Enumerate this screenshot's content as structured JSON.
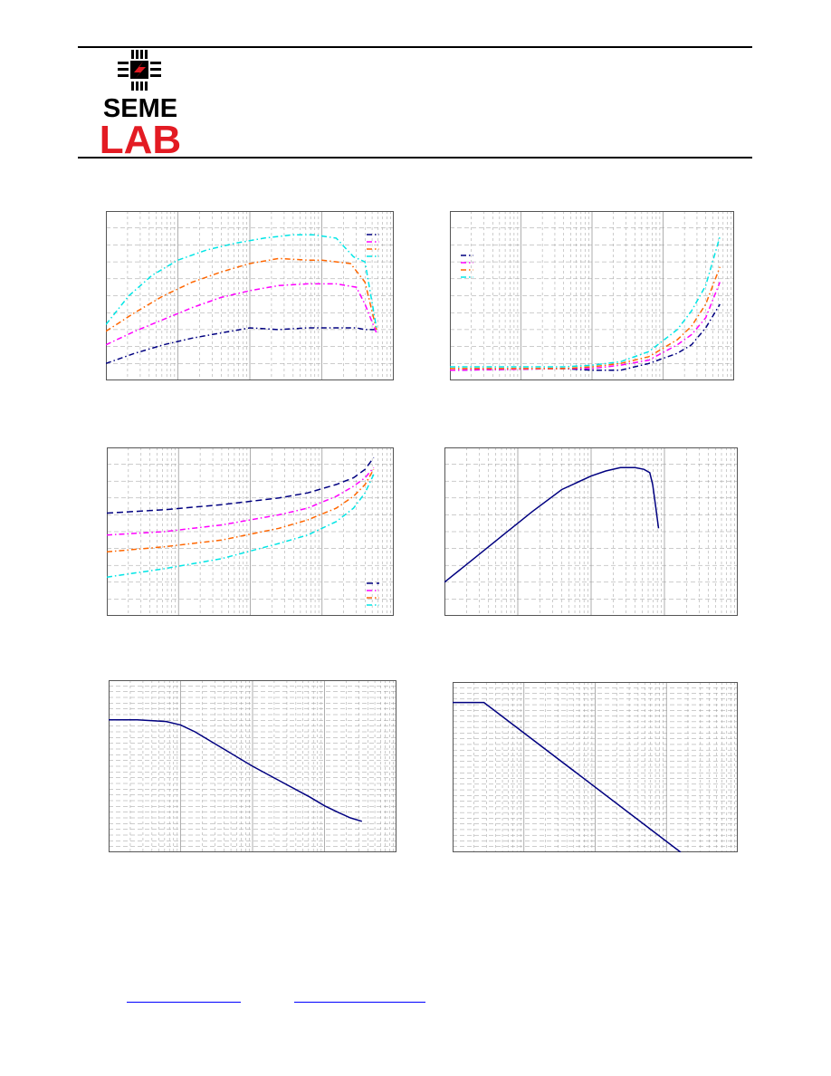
{
  "logo": {
    "line1": "SEME",
    "line2": "LAB",
    "colors": {
      "black": "#000000",
      "red": "#e31b23"
    }
  },
  "colors": {
    "navy": "#000080",
    "magenta": "#ff00ff",
    "orange": "#ff6600",
    "cyan": "#00e5e5",
    "grid": "#9a9a9a",
    "link": "#0000ff"
  },
  "chart_data": [
    {
      "type": "line",
      "xscale": "log",
      "grid": true,
      "legend": "top-right",
      "xlim": [
        0,
        1
      ],
      "ylim": [
        0,
        1
      ],
      "series": [
        {
          "color": "navy",
          "style": "dashdot",
          "x": [
            0,
            0.1,
            0.2,
            0.3,
            0.4,
            0.5,
            0.6,
            0.7,
            0.8,
            0.87,
            0.9,
            0.94
          ],
          "y": [
            0.1,
            0.16,
            0.21,
            0.25,
            0.28,
            0.31,
            0.3,
            0.31,
            0.31,
            0.31,
            0.3,
            0.3
          ]
        },
        {
          "color": "magenta",
          "style": "dashdot",
          "x": [
            0,
            0.1,
            0.2,
            0.3,
            0.4,
            0.5,
            0.6,
            0.7,
            0.8,
            0.87,
            0.9,
            0.94
          ],
          "y": [
            0.21,
            0.29,
            0.36,
            0.43,
            0.49,
            0.53,
            0.56,
            0.57,
            0.57,
            0.55,
            0.45,
            0.28
          ]
        },
        {
          "color": "orange",
          "style": "dashdot",
          "x": [
            0,
            0.1,
            0.2,
            0.3,
            0.4,
            0.5,
            0.6,
            0.7,
            0.75,
            0.85,
            0.9,
            0.94
          ],
          "y": [
            0.29,
            0.4,
            0.5,
            0.58,
            0.64,
            0.69,
            0.72,
            0.71,
            0.71,
            0.69,
            0.58,
            0.3
          ]
        },
        {
          "color": "cyan",
          "style": "dashdot",
          "x": [
            0,
            0.08,
            0.16,
            0.25,
            0.35,
            0.45,
            0.55,
            0.65,
            0.72,
            0.8,
            0.86,
            0.9,
            0.94
          ],
          "y": [
            0.33,
            0.5,
            0.62,
            0.71,
            0.77,
            0.81,
            0.84,
            0.86,
            0.86,
            0.84,
            0.73,
            0.7,
            0.31
          ]
        }
      ]
    },
    {
      "type": "line",
      "xscale": "log",
      "grid": true,
      "legend": "top-left",
      "xlim": [
        0,
        1
      ],
      "ylim": [
        0,
        1
      ],
      "series": [
        {
          "color": "navy",
          "style": "dashdot",
          "x": [
            0,
            0.4,
            0.5,
            0.6,
            0.7,
            0.8,
            0.85,
            0.9,
            0.95
          ],
          "y": [
            0.06,
            0.07,
            0.06,
            0.06,
            0.1,
            0.16,
            0.21,
            0.31,
            0.45
          ]
        },
        {
          "color": "magenta",
          "style": "dashdot",
          "x": [
            0,
            0.4,
            0.5,
            0.6,
            0.7,
            0.8,
            0.85,
            0.9,
            0.95
          ],
          "y": [
            0.06,
            0.07,
            0.07,
            0.09,
            0.12,
            0.21,
            0.27,
            0.37,
            0.58
          ]
        },
        {
          "color": "orange",
          "style": "dashdot",
          "x": [
            0,
            0.4,
            0.5,
            0.6,
            0.7,
            0.8,
            0.85,
            0.9,
            0.95
          ],
          "y": [
            0.07,
            0.07,
            0.08,
            0.1,
            0.14,
            0.24,
            0.32,
            0.45,
            0.67
          ]
        },
        {
          "color": "cyan",
          "style": "dashdot",
          "x": [
            0,
            0.4,
            0.5,
            0.6,
            0.7,
            0.8,
            0.85,
            0.9,
            0.95
          ],
          "y": [
            0.08,
            0.08,
            0.09,
            0.11,
            0.17,
            0.3,
            0.41,
            0.56,
            0.85
          ]
        }
      ]
    },
    {
      "type": "line",
      "xscale": "log",
      "grid": true,
      "legend": "bottom-right",
      "xlim": [
        0,
        1
      ],
      "ylim": [
        0,
        1
      ],
      "series": [
        {
          "color": "navy",
          "style": "dash",
          "x": [
            0,
            0.2,
            0.4,
            0.6,
            0.7,
            0.8,
            0.86,
            0.9,
            0.93
          ],
          "y": [
            0.61,
            0.63,
            0.66,
            0.7,
            0.73,
            0.78,
            0.82,
            0.87,
            0.94
          ]
        },
        {
          "color": "magenta",
          "style": "dashdot",
          "x": [
            0,
            0.2,
            0.4,
            0.6,
            0.7,
            0.8,
            0.86,
            0.9,
            0.93
          ],
          "y": [
            0.48,
            0.5,
            0.54,
            0.6,
            0.64,
            0.71,
            0.77,
            0.82,
            0.88
          ]
        },
        {
          "color": "orange",
          "style": "dashdot",
          "x": [
            0,
            0.2,
            0.4,
            0.6,
            0.7,
            0.8,
            0.86,
            0.9,
            0.93
          ],
          "y": [
            0.38,
            0.41,
            0.45,
            0.52,
            0.57,
            0.64,
            0.71,
            0.78,
            0.87
          ]
        },
        {
          "color": "cyan",
          "style": "dashdot",
          "x": [
            0,
            0.2,
            0.4,
            0.6,
            0.7,
            0.8,
            0.86,
            0.9,
            0.93
          ],
          "y": [
            0.23,
            0.28,
            0.34,
            0.43,
            0.48,
            0.56,
            0.64,
            0.73,
            0.84
          ]
        }
      ]
    },
    {
      "type": "line",
      "xscale": "log",
      "grid": true,
      "xlim": [
        0,
        1
      ],
      "ylim": [
        0,
        1
      ],
      "series": [
        {
          "color": "navy",
          "style": "solid",
          "x": [
            0,
            0.1,
            0.2,
            0.3,
            0.4,
            0.5,
            0.55,
            0.6,
            0.65,
            0.68,
            0.7,
            0.71,
            0.72,
            0.73
          ],
          "y": [
            0.2,
            0.34,
            0.48,
            0.62,
            0.75,
            0.83,
            0.86,
            0.88,
            0.88,
            0.87,
            0.85,
            0.78,
            0.65,
            0.52
          ]
        }
      ]
    },
    {
      "type": "line",
      "xscale": "log",
      "yscale": "log",
      "grid": true,
      "xlim": [
        0,
        1
      ],
      "ylim": [
        0,
        1
      ],
      "series": [
        {
          "color": "navy",
          "style": "solid",
          "x": [
            0,
            0.1,
            0.2,
            0.25,
            0.3,
            0.35,
            0.4,
            0.5,
            0.6,
            0.7,
            0.75,
            0.8,
            0.84,
            0.88
          ],
          "y": [
            0.77,
            0.77,
            0.76,
            0.74,
            0.7,
            0.65,
            0.6,
            0.5,
            0.41,
            0.32,
            0.27,
            0.23,
            0.2,
            0.18
          ]
        }
      ]
    },
    {
      "type": "line",
      "xscale": "log",
      "yscale": "log",
      "grid": true,
      "xlim": [
        0,
        1
      ],
      "ylim": [
        0,
        1
      ],
      "series": [
        {
          "color": "navy",
          "style": "solid",
          "x": [
            0,
            0.11,
            0.8
          ],
          "y": [
            0.88,
            0.88,
            0
          ]
        }
      ]
    }
  ]
}
